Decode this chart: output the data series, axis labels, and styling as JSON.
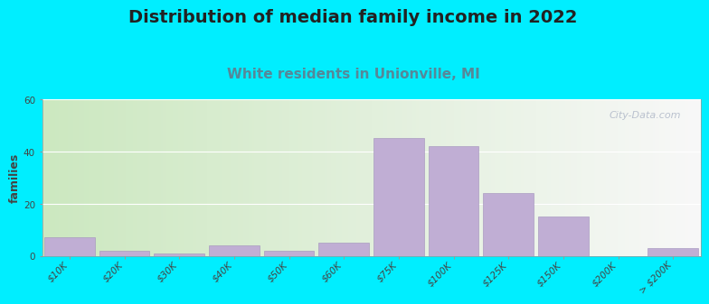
{
  "title": "Distribution of median family income in 2022",
  "subtitle": "White residents in Unionville, MI",
  "ylabel": "families",
  "categories": [
    "$10K",
    "$20K",
    "$30K",
    "$40K",
    "$50K",
    "$60K",
    "$75K",
    "$100K",
    "$125K",
    "$150K",
    "$200K",
    "> $200K"
  ],
  "values": [
    7,
    2,
    1,
    4,
    2,
    5,
    45,
    42,
    24,
    15,
    0,
    3
  ],
  "bar_color": "#c0aed4",
  "bar_edge_color": "#a090bb",
  "ylim": [
    0,
    60
  ],
  "yticks": [
    0,
    20,
    40,
    60
  ],
  "title_fontsize": 14,
  "subtitle_fontsize": 11,
  "subtitle_color": "#558899",
  "ylabel_fontsize": 9,
  "tick_fontsize": 7.5,
  "bg_outer": "#00eeff",
  "bg_plot_left": "#cce8c0",
  "bg_plot_right": "#f8f8f8",
  "watermark_text": "City-Data.com",
  "watermark_color": "#b0b8c8",
  "watermark_icon_color": "#b0b8c8"
}
